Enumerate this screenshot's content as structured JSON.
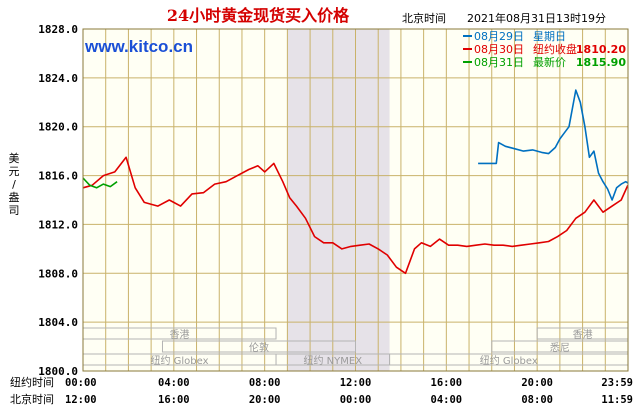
{
  "header": {
    "title": "24小时黄金现货买入价格",
    "timezone_label": "北京时间",
    "timestamp": "2021年08月31日13时19分",
    "watermark": "www.kitco.cn"
  },
  "legend": {
    "items": [
      {
        "date": "08月29日",
        "text": "星期日",
        "value": "",
        "color": "#0070c0"
      },
      {
        "date": "08月30日",
        "text": "纽约收盘",
        "value": "1810.20",
        "color": "#e00000"
      },
      {
        "date": "08月31日",
        "text": "最新价",
        "value": "1815.90",
        "color": "#00a000"
      }
    ]
  },
  "sessions": {
    "row1": [
      {
        "label": "香港",
        "x0": 0,
        "x1": 8.5
      },
      {
        "label": "香港",
        "x0": 20,
        "x1": 24
      }
    ],
    "row2": [
      {
        "label": "伦敦",
        "x0": 3.5,
        "x1": 12.0
      },
      {
        "label": "悉尼",
        "x0": 18.0,
        "x1": 24
      }
    ],
    "row3": [
      {
        "label": "纽约 Globex",
        "x0": 0,
        "x1": 8.5
      },
      {
        "label": "纽约 NYMEX",
        "x0": 8.5,
        "x1": 13.5
      },
      {
        "label": "纽约 Globex",
        "x0": 13.5,
        "x1": 24
      }
    ]
  },
  "chart_data": {
    "type": "line",
    "title": "24小时黄金现货买入价格",
    "ylabel": "美元/盎司",
    "ylim": [
      1800,
      1828
    ],
    "xlim": [
      0,
      24
    ],
    "yticks": [
      "1828.0",
      "1824.0",
      "1820.0",
      "1816.0",
      "1812.0",
      "1808.0",
      "1804.0",
      "1800.0"
    ],
    "x_axis_rows": [
      {
        "label": "纽约时间",
        "ticks": [
          "00:00",
          "04:00",
          "08:00",
          "12:00",
          "16:00",
          "20:00",
          "23:59"
        ]
      },
      {
        "label": "北京时间",
        "ticks": [
          "12:00",
          "16:00",
          "20:00",
          "00:00",
          "04:00",
          "08:00",
          "11:59"
        ]
      }
    ],
    "shaded_region": [
      9,
      13.5
    ],
    "grid": true,
    "series": [
      {
        "name": "08月29日",
        "color": "#0070c0",
        "x": [
          17.4,
          18.2,
          18.3,
          18.6,
          19.0,
          19.4,
          19.8,
          20.2,
          20.5,
          20.8,
          21.0,
          21.2,
          21.4,
          21.7,
          21.9,
          22.1,
          22.3,
          22.5,
          22.7,
          22.9,
          23.1,
          23.3,
          23.5,
          23.7,
          23.9,
          23.99
        ],
        "y": [
          1817.0,
          1817.0,
          1818.7,
          1818.4,
          1818.2,
          1818.0,
          1818.1,
          1817.9,
          1817.8,
          1818.3,
          1819.0,
          1819.5,
          1820.0,
          1823.0,
          1822.0,
          1820.0,
          1817.5,
          1818.0,
          1816.2,
          1815.5,
          1814.9,
          1814.0,
          1815.0,
          1815.3,
          1815.5,
          1815.4
        ]
      },
      {
        "name": "08月30日",
        "color": "#e00000",
        "x": [
          0.0,
          0.4,
          0.9,
          1.4,
          1.9,
          2.3,
          2.7,
          3.3,
          3.8,
          4.3,
          4.8,
          5.3,
          5.8,
          6.3,
          6.8,
          7.3,
          7.7,
          8.0,
          8.4,
          8.8,
          9.1,
          9.4,
          9.8,
          10.2,
          10.6,
          11.0,
          11.4,
          11.8,
          12.2,
          12.6,
          13.0,
          13.4,
          13.8,
          14.2,
          14.6,
          14.9,
          15.3,
          15.7,
          16.1,
          16.5,
          16.9,
          17.3,
          17.7,
          18.1,
          18.5,
          18.9,
          19.3,
          19.7,
          20.1,
          20.5,
          20.9,
          21.3,
          21.7,
          22.1,
          22.5,
          22.9,
          23.3,
          23.7,
          23.99
        ],
        "y": [
          1815.0,
          1815.2,
          1816.0,
          1816.3,
          1817.5,
          1815.0,
          1813.8,
          1813.5,
          1814.0,
          1813.5,
          1814.5,
          1814.6,
          1815.3,
          1815.5,
          1816.0,
          1816.5,
          1816.8,
          1816.3,
          1817.0,
          1815.5,
          1814.2,
          1813.5,
          1812.5,
          1811.0,
          1810.5,
          1810.5,
          1810.0,
          1810.2,
          1810.3,
          1810.4,
          1810.0,
          1809.5,
          1808.5,
          1808.0,
          1810.0,
          1810.5,
          1810.2,
          1810.8,
          1810.3,
          1810.3,
          1810.2,
          1810.3,
          1810.4,
          1810.3,
          1810.3,
          1810.2,
          1810.3,
          1810.4,
          1810.5,
          1810.6,
          1811.0,
          1811.5,
          1812.5,
          1813.0,
          1814.0,
          1813.0,
          1813.5,
          1814.0,
          1815.2
        ]
      },
      {
        "name": "08月31日",
        "color": "#00a000",
        "x": [
          0.0,
          0.3,
          0.6,
          0.9,
          1.2,
          1.5
        ],
        "y": [
          1815.8,
          1815.2,
          1815.0,
          1815.3,
          1815.1,
          1815.5
        ]
      }
    ]
  }
}
